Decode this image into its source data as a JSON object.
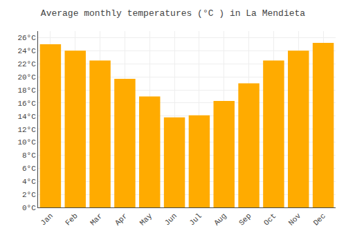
{
  "chart_data": {
    "type": "bar",
    "title": "Average monthly temperatures (°C ) in La Mendieta",
    "categories": [
      "Jan",
      "Feb",
      "Mar",
      "Apr",
      "May",
      "Jun",
      "Jul",
      "Aug",
      "Sep",
      "Oct",
      "Nov",
      "Dec"
    ],
    "values": [
      25.0,
      24.0,
      22.5,
      19.7,
      17.0,
      13.8,
      14.1,
      16.3,
      19.0,
      22.5,
      24.0,
      25.2
    ],
    "color": "#FFAB00",
    "ylim": [
      0,
      27
    ],
    "yticks": [
      {
        "value": 0,
        "label": "0°C"
      },
      {
        "value": 2,
        "label": "2°C"
      },
      {
        "value": 4,
        "label": "4°C"
      },
      {
        "value": 6,
        "label": "6°C"
      },
      {
        "value": 8,
        "label": "8°C"
      },
      {
        "value": 10,
        "label": "10°C"
      },
      {
        "value": 12,
        "label": "12°C"
      },
      {
        "value": 14,
        "label": "14°C"
      },
      {
        "value": 16,
        "label": "16°C"
      },
      {
        "value": 18,
        "label": "18°C"
      },
      {
        "value": 20,
        "label": "20°C"
      },
      {
        "value": 22,
        "label": "22°C"
      },
      {
        "value": 24,
        "label": "24°C"
      },
      {
        "value": 26,
        "label": "26°C"
      }
    ],
    "grid": true
  }
}
